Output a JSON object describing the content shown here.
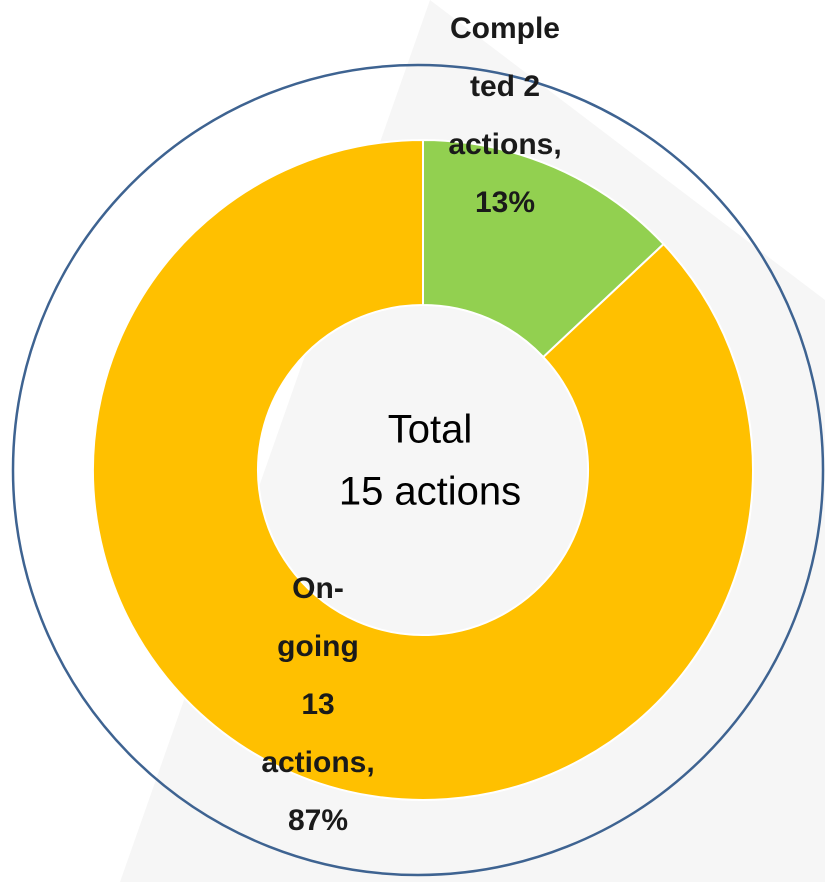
{
  "chart_data": {
    "type": "donut",
    "values": [
      13,
      87
    ],
    "colors": [
      "#92d050",
      "#ffc000"
    ],
    "label_lines": [
      [
        "Comple",
        "ted 2",
        "actions,",
        "13%"
      ],
      [
        "On-",
        "going",
        "13",
        "actions,",
        "87%"
      ]
    ],
    "center_text": [
      "Total",
      "15 actions"
    ]
  }
}
